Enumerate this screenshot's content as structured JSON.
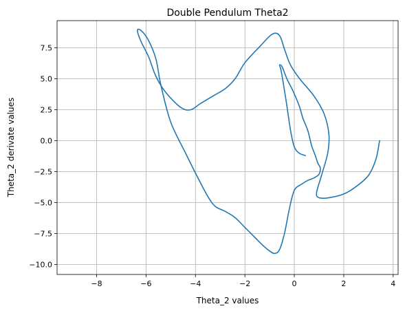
{
  "chart_data": {
    "type": "line",
    "title": "Double Pendulum Theta2",
    "xlabel": "Theta_2 values",
    "ylabel": "Theta_2 derivate values",
    "xlim": [
      -9.6,
      4.2
    ],
    "ylim": [
      -10.8,
      9.7
    ],
    "xticks": [
      -8,
      -6,
      -4,
      -2,
      0,
      2,
      4
    ],
    "xtick_labels": [
      "−8",
      "−6",
      "−4",
      "−2",
      "0",
      "2",
      "4"
    ],
    "yticks": [
      7.5,
      5.0,
      2.5,
      0.0,
      -2.5,
      -5.0,
      -7.5,
      -10.0
    ],
    "ytick_labels": [
      "7.5",
      "5.0",
      "2.5",
      "0.0",
      "−2.5",
      "−5.0",
      "−7.5",
      "−10.0"
    ],
    "grid": true,
    "series_color": "#1f77b4",
    "series": [
      {
        "x": [
          3.45,
          3.3,
          3.0,
          2.5,
          2.0,
          1.4,
          1.0,
          0.9,
          1.1,
          1.35,
          1.4,
          1.2,
          0.8,
          0.3,
          0.0,
          -0.2,
          -0.4,
          -0.6,
          -0.9,
          -1.4,
          -2.0,
          -2.4,
          -2.8,
          -3.3,
          -3.8,
          -4.2,
          -4.6,
          -5.2,
          -5.6,
          -5.9,
          -6.2,
          -6.35,
          -6.2,
          -5.9,
          -5.6,
          -5.4,
          -5.0,
          -4.4,
          -3.9,
          -3.5,
          -3.2,
          -2.8,
          -2.4,
          -2.0,
          -1.6,
          -1.3,
          -1.0,
          -0.8,
          -0.6,
          -0.4,
          -0.2,
          0.0,
          0.3,
          0.55,
          0.8,
          1.0,
          1.05,
          0.95,
          0.85,
          0.7,
          0.55,
          0.35,
          0.2,
          -0.05,
          -0.3,
          -0.5,
          -0.6,
          -0.55,
          -0.45,
          -0.3,
          -0.15,
          0.0,
          0.2,
          0.45
        ],
        "y": [
          0.0,
          -1.5,
          -2.8,
          -3.7,
          -4.3,
          -4.6,
          -4.6,
          -4.2,
          -2.8,
          -1.0,
          0.5,
          2.2,
          3.6,
          4.8,
          5.6,
          6.3,
          7.4,
          8.5,
          8.6,
          7.6,
          6.3,
          5.0,
          4.2,
          3.6,
          3.0,
          2.5,
          2.7,
          3.9,
          5.2,
          6.8,
          8.0,
          8.9,
          8.9,
          8.1,
          6.6,
          4.5,
          1.5,
          -1.0,
          -3.0,
          -4.5,
          -5.3,
          -5.7,
          -6.2,
          -7.0,
          -7.8,
          -8.4,
          -8.9,
          -9.1,
          -8.8,
          -7.5,
          -5.5,
          -4.0,
          -3.5,
          -3.2,
          -3.0,
          -2.7,
          -2.2,
          -1.8,
          -1.2,
          -0.4,
          0.8,
          1.8,
          2.8,
          4.0,
          5.0,
          6.0,
          6.1,
          5.8,
          4.7,
          2.8,
          0.8,
          -0.5,
          -1.0,
          -1.2
        ]
      }
    ]
  }
}
